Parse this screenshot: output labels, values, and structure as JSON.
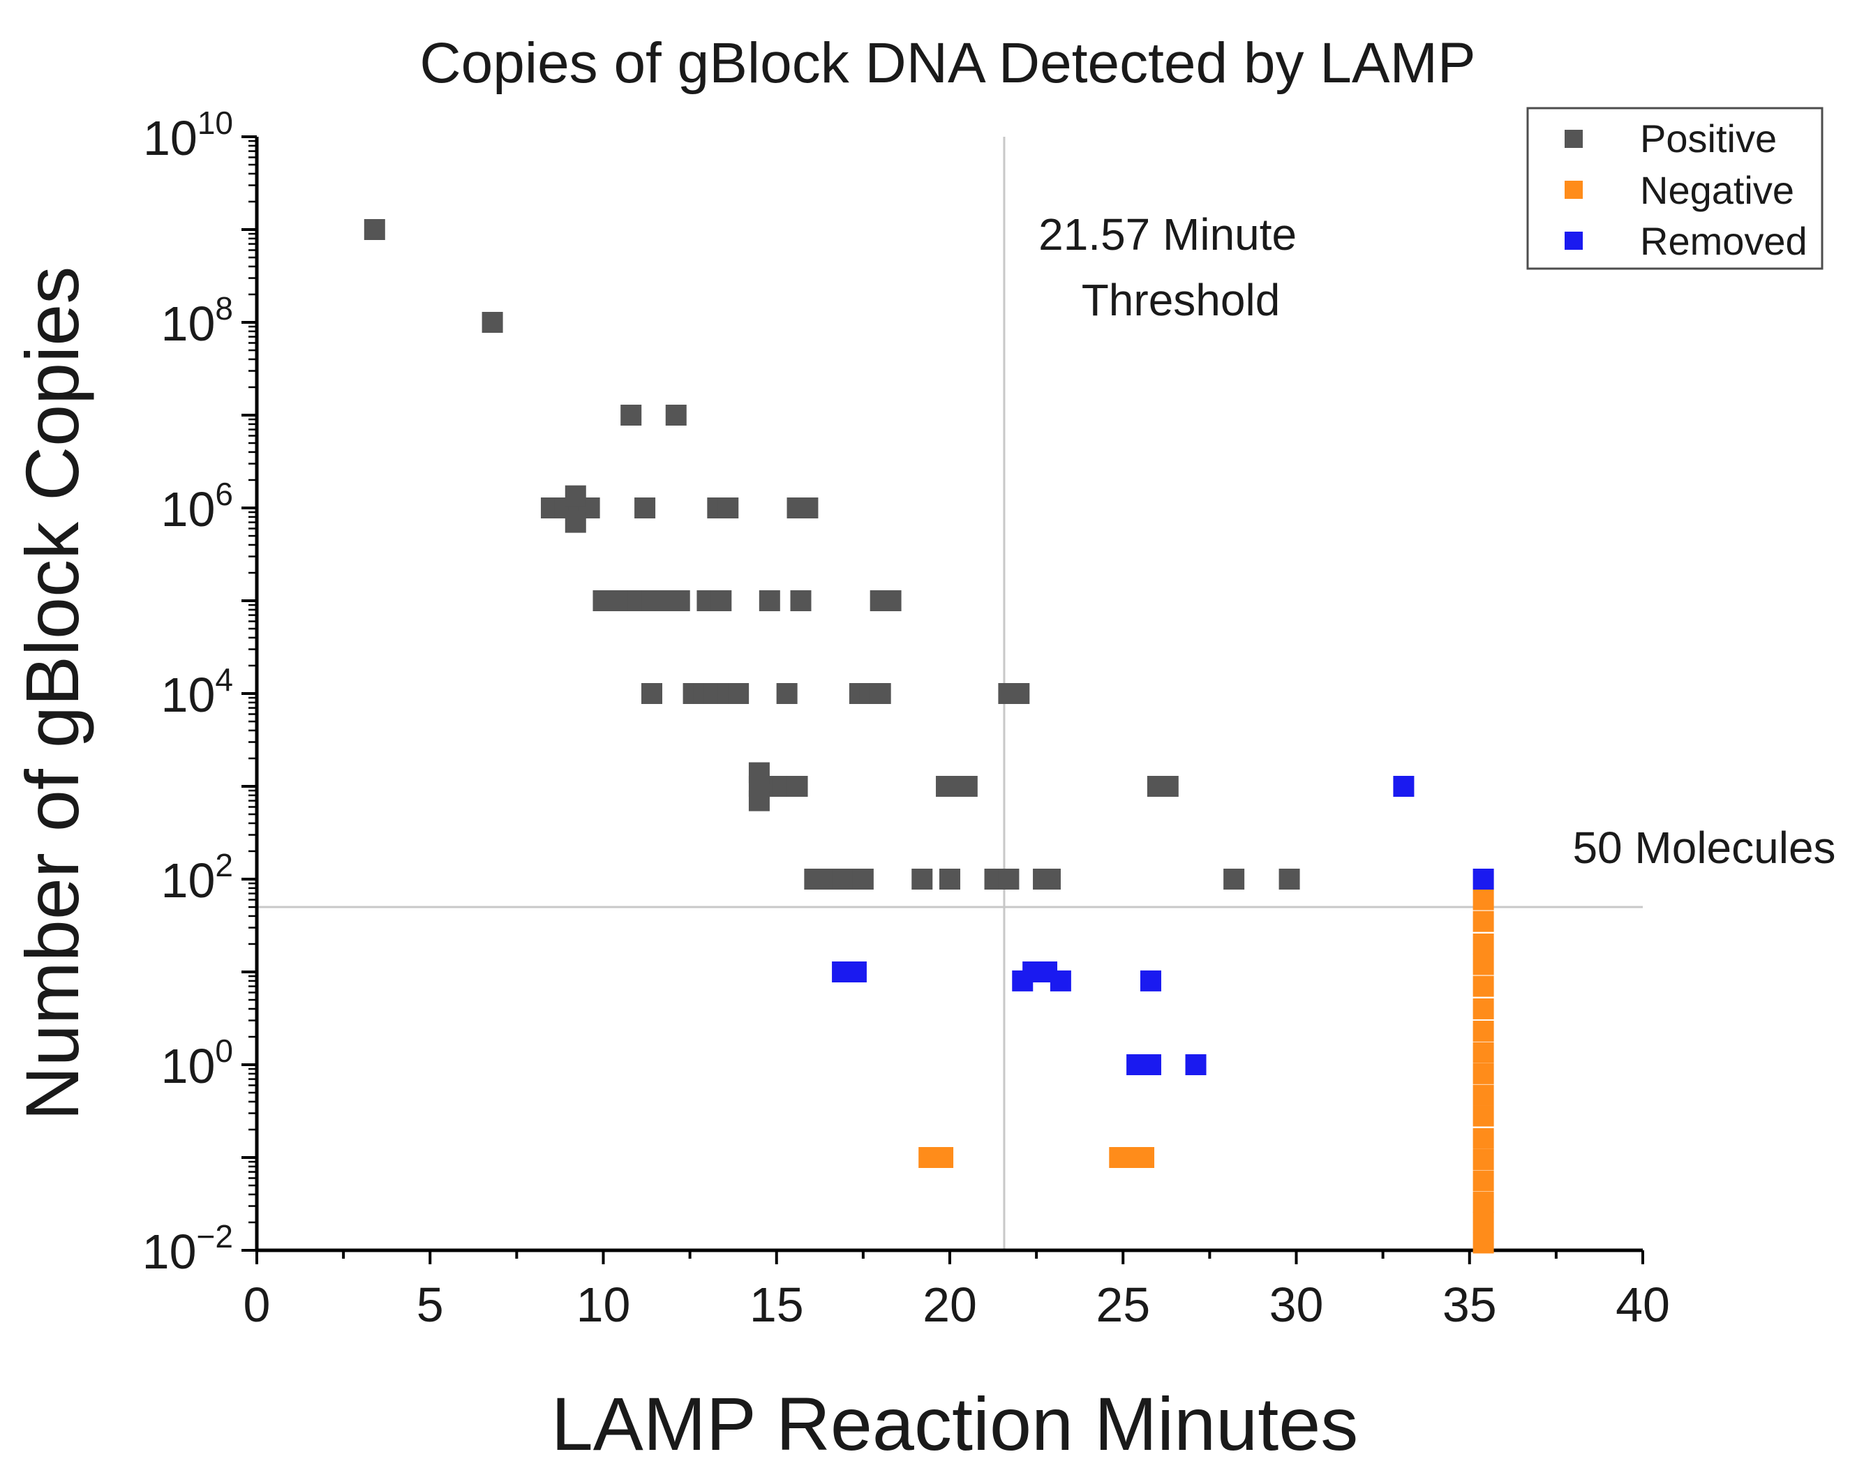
{
  "chart_data": {
    "type": "scatter",
    "title": "Copies of gBlock DNA Detected by LAMP",
    "xlabel": "LAMP Reaction Minutes",
    "ylabel": "Number of gBlock Copies",
    "xlim": [
      0,
      40
    ],
    "ylim_log10": [
      -2,
      10
    ],
    "yscale": "log",
    "x_ticks": [
      0,
      5,
      10,
      15,
      20,
      25,
      30,
      35,
      40
    ],
    "y_tick_labels": [
      {
        "exp": 10,
        "base": "10",
        "sup": "10"
      },
      {
        "exp": 8,
        "base": "10",
        "sup": "8"
      },
      {
        "exp": 6,
        "base": "10",
        "sup": "6"
      },
      {
        "exp": 4,
        "base": "10",
        "sup": "4"
      },
      {
        "exp": 2,
        "base": "10",
        "sup": "2"
      },
      {
        "exp": 0,
        "base": "10",
        "sup": "0"
      },
      {
        "exp": -2,
        "base": "10",
        "sup": "−2"
      }
    ],
    "grid": false,
    "legend_position": "top-right",
    "reference_lines": [
      {
        "orientation": "vertical",
        "x": 21.57,
        "label_lines": [
          "21.57 Minute",
          "Threshold"
        ]
      },
      {
        "orientation": "horizontal",
        "y": 50,
        "label_lines": [
          "50 Molecules"
        ]
      }
    ],
    "series": [
      {
        "name": "Positive",
        "color": "#555555",
        "points": [
          {
            "x": 3.4,
            "y": 1000000000.0
          },
          {
            "x": 6.8,
            "y": 100000000.0
          },
          {
            "x": 10.8,
            "y": 10000000.0
          },
          {
            "x": 12.1,
            "y": 10000000.0
          },
          {
            "x": 8.5,
            "y": 1000000.0
          },
          {
            "x": 8.9,
            "y": 1000000.0
          },
          {
            "x": 9.3,
            "y": 1000000.0
          },
          {
            "x": 9.6,
            "y": 1000000.0
          },
          {
            "x": 9.2,
            "y": 1350000.0
          },
          {
            "x": 9.2,
            "y": 700000.0
          },
          {
            "x": 11.2,
            "y": 1000000.0
          },
          {
            "x": 13.3,
            "y": 1000000.0
          },
          {
            "x": 13.6,
            "y": 1000000.0
          },
          {
            "x": 15.6,
            "y": 1000000.0
          },
          {
            "x": 15.9,
            "y": 1000000.0
          },
          {
            "x": 10.0,
            "y": 100000.0
          },
          {
            "x": 10.6,
            "y": 100000.0
          },
          {
            "x": 11.0,
            "y": 100000.0
          },
          {
            "x": 11.4,
            "y": 100000.0
          },
          {
            "x": 11.8,
            "y": 100000.0
          },
          {
            "x": 12.2,
            "y": 100000.0
          },
          {
            "x": 13.0,
            "y": 100000.0
          },
          {
            "x": 13.4,
            "y": 100000.0
          },
          {
            "x": 14.8,
            "y": 100000.0
          },
          {
            "x": 15.7,
            "y": 100000.0
          },
          {
            "x": 18.0,
            "y": 100000.0
          },
          {
            "x": 18.3,
            "y": 100000.0
          },
          {
            "x": 11.4,
            "y": 10000.0
          },
          {
            "x": 12.6,
            "y": 10000.0
          },
          {
            "x": 12.9,
            "y": 10000.0
          },
          {
            "x": 13.2,
            "y": 10000.0
          },
          {
            "x": 13.6,
            "y": 10000.0
          },
          {
            "x": 13.9,
            "y": 10000.0
          },
          {
            "x": 15.3,
            "y": 10000.0
          },
          {
            "x": 17.4,
            "y": 10000.0
          },
          {
            "x": 17.7,
            "y": 10000.0
          },
          {
            "x": 18.0,
            "y": 10000.0
          },
          {
            "x": 21.7,
            "y": 10000.0
          },
          {
            "x": 22.0,
            "y": 10000.0
          },
          {
            "x": 14.5,
            "y": 1000
          },
          {
            "x": 14.8,
            "y": 1000
          },
          {
            "x": 15.2,
            "y": 1000
          },
          {
            "x": 15.6,
            "y": 1000
          },
          {
            "x": 14.5,
            "y": 1400
          },
          {
            "x": 14.5,
            "y": 700
          },
          {
            "x": 19.9,
            "y": 1000
          },
          {
            "x": 20.2,
            "y": 1000
          },
          {
            "x": 20.5,
            "y": 1000
          },
          {
            "x": 26.0,
            "y": 1000
          },
          {
            "x": 26.3,
            "y": 1000
          },
          {
            "x": 16.1,
            "y": 100
          },
          {
            "x": 16.5,
            "y": 100
          },
          {
            "x": 16.9,
            "y": 100
          },
          {
            "x": 17.2,
            "y": 100
          },
          {
            "x": 17.5,
            "y": 100
          },
          {
            "x": 19.2,
            "y": 100
          },
          {
            "x": 20.0,
            "y": 100
          },
          {
            "x": 21.3,
            "y": 100
          },
          {
            "x": 21.7,
            "y": 100
          },
          {
            "x": 22.7,
            "y": 100
          },
          {
            "x": 22.9,
            "y": 100
          },
          {
            "x": 28.2,
            "y": 100
          },
          {
            "x": 29.8,
            "y": 100
          }
        ]
      },
      {
        "name": "Negative",
        "color": "#ff8c1a",
        "points": [
          {
            "x": 19.4,
            "y": 0.1
          },
          {
            "x": 19.8,
            "y": 0.1
          },
          {
            "x": 24.9,
            "y": 0.1
          },
          {
            "x": 25.3,
            "y": 0.1
          },
          {
            "x": 25.6,
            "y": 0.1
          },
          {
            "x": 35.4,
            "y": 60
          },
          {
            "x": 35.4,
            "y": 35
          },
          {
            "x": 35.4,
            "y": 20
          },
          {
            "x": 35.4,
            "y": 12
          },
          {
            "x": 35.4,
            "y": 7
          },
          {
            "x": 35.4,
            "y": 4
          },
          {
            "x": 35.4,
            "y": 2.3
          },
          {
            "x": 35.4,
            "y": 1.35
          },
          {
            "x": 35.4,
            "y": 0.8
          },
          {
            "x": 35.4,
            "y": 0.47
          },
          {
            "x": 35.4,
            "y": 0.28
          },
          {
            "x": 35.4,
            "y": 0.16
          },
          {
            "x": 35.4,
            "y": 0.095
          },
          {
            "x": 35.4,
            "y": 0.056
          },
          {
            "x": 35.4,
            "y": 0.033
          },
          {
            "x": 35.4,
            "y": 0.02
          },
          {
            "x": 35.4,
            "y": 0.012
          }
        ]
      },
      {
        "name": "Removed",
        "color": "#1a1af0",
        "points": [
          {
            "x": 33.1,
            "y": 1000
          },
          {
            "x": 35.4,
            "y": 100
          },
          {
            "x": 16.9,
            "y": 10
          },
          {
            "x": 17.3,
            "y": 10
          },
          {
            "x": 22.1,
            "y": 8
          },
          {
            "x": 22.4,
            "y": 10
          },
          {
            "x": 22.8,
            "y": 10
          },
          {
            "x": 23.2,
            "y": 8
          },
          {
            "x": 25.8,
            "y": 8
          },
          {
            "x": 25.4,
            "y": 1
          },
          {
            "x": 25.8,
            "y": 1
          },
          {
            "x": 27.1,
            "y": 1
          }
        ]
      }
    ]
  }
}
